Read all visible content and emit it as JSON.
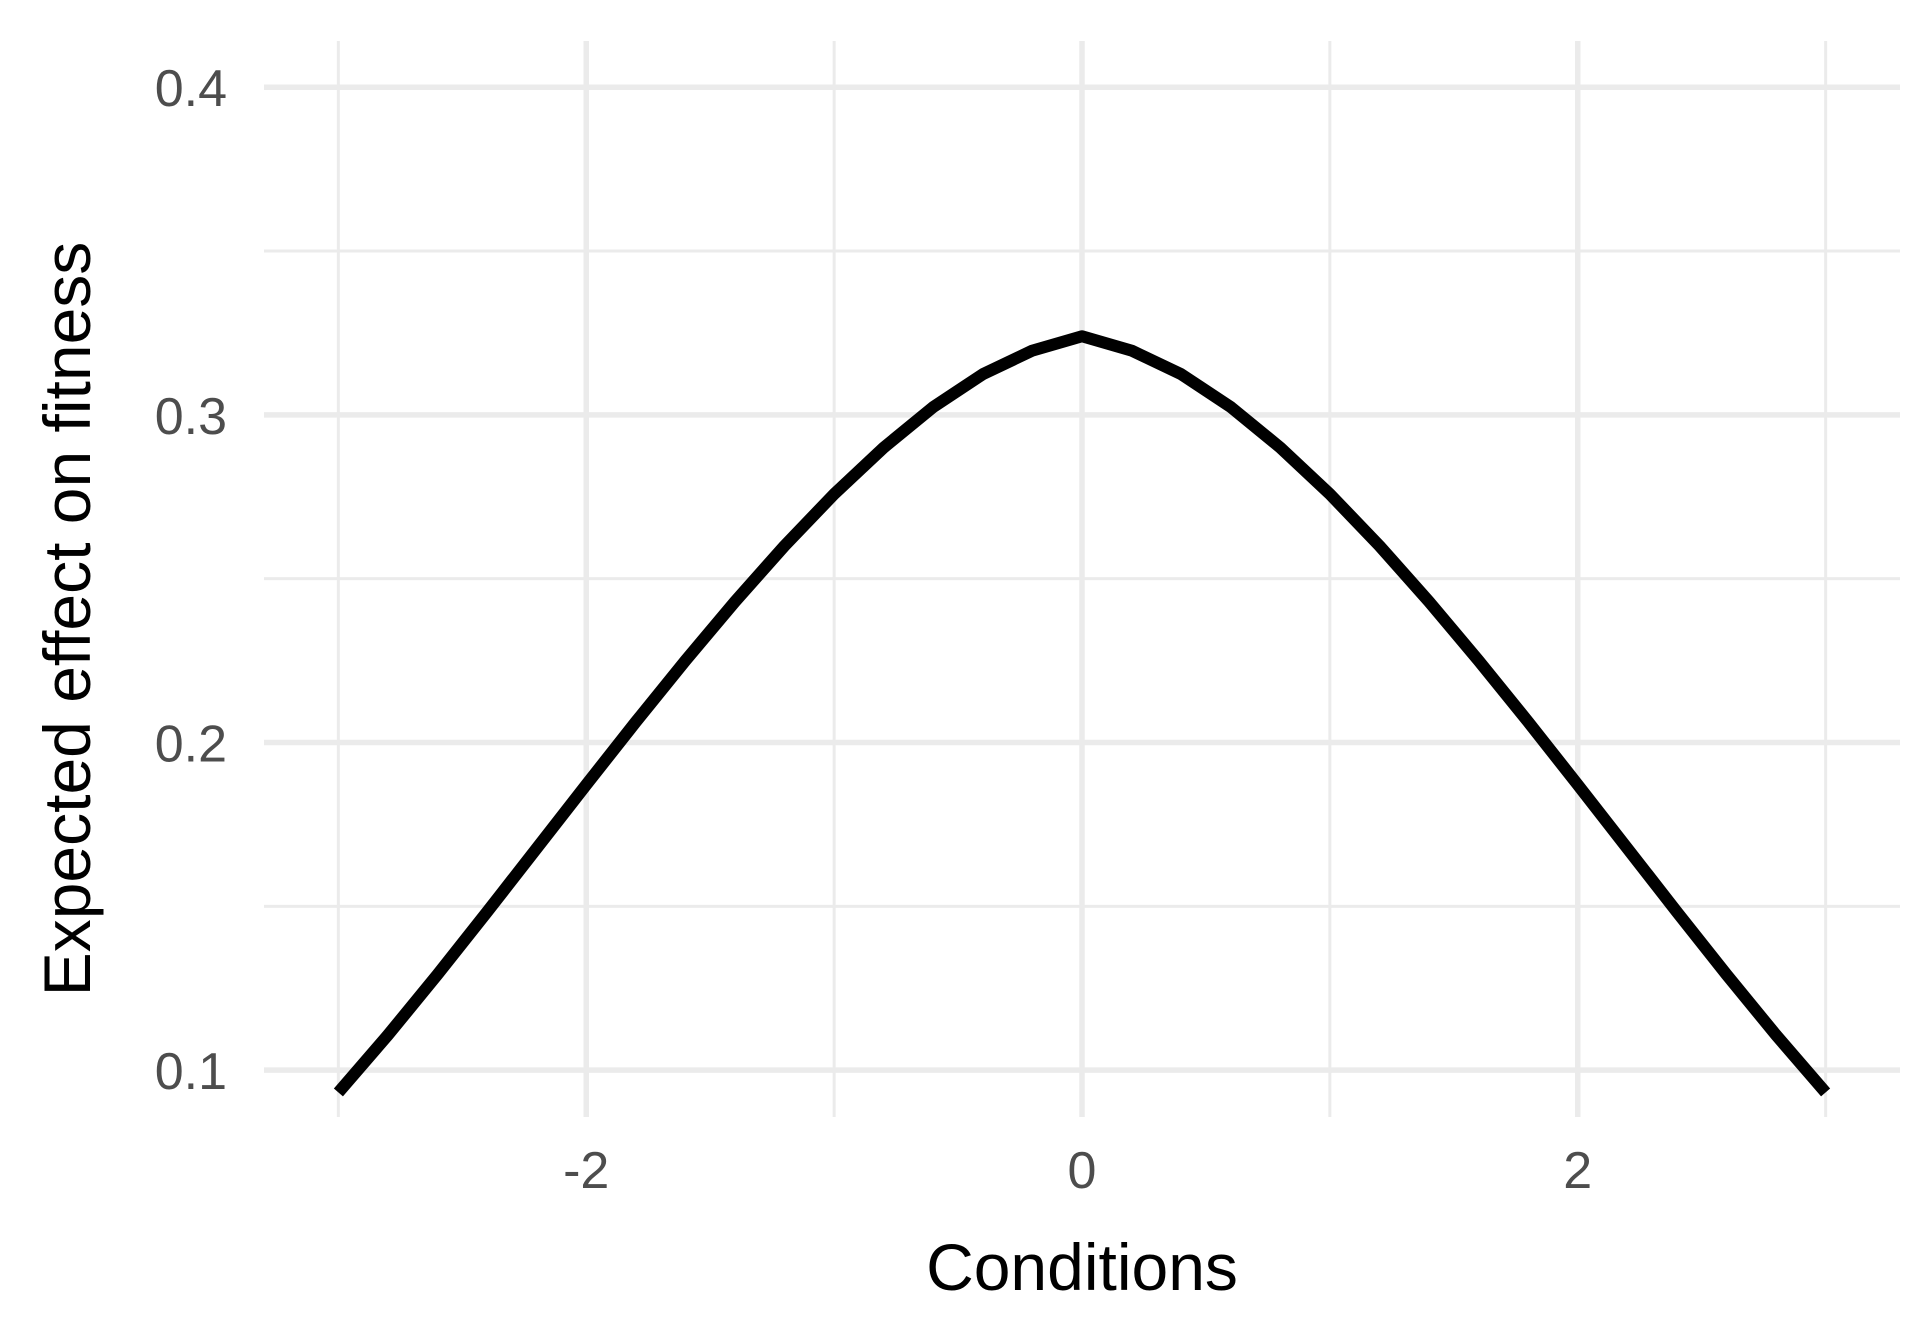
{
  "chart_data": {
    "type": "line",
    "title": "",
    "xlabel": "Conditions",
    "ylabel": "Expected effect on fitness",
    "xlim": [
      -3.3,
      3.3
    ],
    "ylim": [
      0.0857,
      0.4141
    ],
    "x_ticks": [
      {
        "value": -2,
        "label": "-2"
      },
      {
        "value": 0,
        "label": "0"
      },
      {
        "value": 2,
        "label": "2"
      }
    ],
    "y_ticks": [
      {
        "value": 0.1,
        "label": "0.1"
      },
      {
        "value": 0.2,
        "label": "0.2"
      },
      {
        "value": 0.3,
        "label": "0.3"
      },
      {
        "value": 0.4,
        "label": "0.4"
      }
    ],
    "x_minor_grid": [
      -3,
      -1,
      1,
      3
    ],
    "y_minor_grid": [
      0.15,
      0.25,
      0.35
    ],
    "grid": true,
    "legend": "none",
    "colors": {
      "background": "#ffffff",
      "grid": "#ebebeb",
      "line": "#000000",
      "tick_text": "#4d4d4d",
      "axis_title": "#000000"
    },
    "series": [
      {
        "x": [
          -3.0,
          -2.8,
          -2.6,
          -2.4,
          -2.2,
          -2.0,
          -1.8,
          -1.6,
          -1.4,
          -1.2,
          -1.0,
          -0.8,
          -0.6,
          -0.4,
          -0.2,
          0.0,
          0.2,
          0.4,
          0.6,
          0.8,
          1.0,
          1.2,
          1.4,
          1.6,
          1.8,
          2.0,
          2.2,
          2.4,
          2.6,
          2.8,
          3.0
        ],
        "values": [
          0.0932,
          0.1107,
          0.1292,
          0.1483,
          0.1677,
          0.1871,
          0.2063,
          0.225,
          0.243,
          0.26,
          0.2758,
          0.29,
          0.3024,
          0.3124,
          0.3196,
          0.324,
          0.3196,
          0.3124,
          0.3024,
          0.29,
          0.2758,
          0.26,
          0.243,
          0.225,
          0.2063,
          0.1871,
          0.1677,
          0.1483,
          0.1292,
          0.1107,
          0.0932
        ]
      }
    ]
  }
}
